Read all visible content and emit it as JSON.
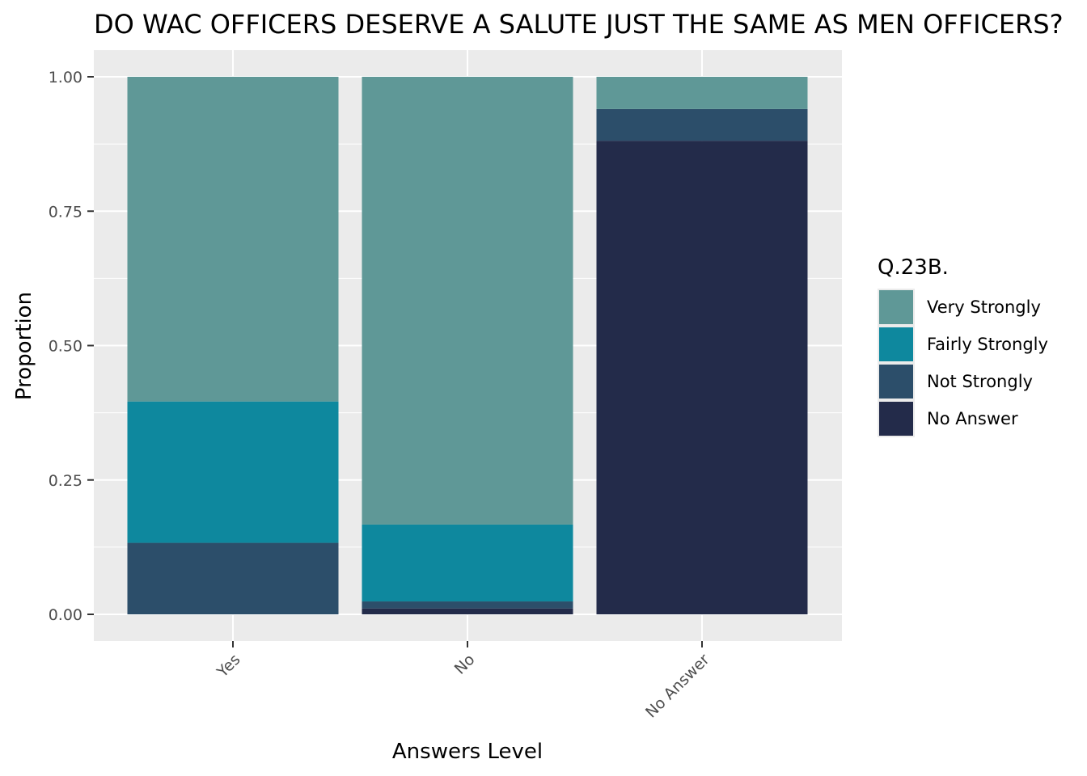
{
  "chart_data": {
    "type": "bar",
    "stacked": true,
    "title": "DO WAC OFFICERS DESERVE A SALUTE JUST THE SAME AS MEN OFFICERS?",
    "xlabel": "Answers Level",
    "ylabel": "Proportion",
    "ylim": [
      0,
      1
    ],
    "yticks": [
      "0.00",
      "0.25",
      "0.50",
      "0.75",
      "1.00"
    ],
    "categories": [
      "Yes",
      "No",
      "No Answer"
    ],
    "legend_title": "Q.23B.",
    "legend_position": "right",
    "grid": true,
    "series": [
      {
        "name": "No Answer",
        "color": "#232b4a",
        "values": [
          0.0,
          0.011,
          0.881
        ]
      },
      {
        "name": "Not Strongly",
        "color": "#2c4e6a",
        "values": [
          0.133,
          0.013,
          0.059
        ]
      },
      {
        "name": "Fairly Strongly",
        "color": "#0e889e",
        "values": [
          0.263,
          0.143,
          0.0
        ]
      },
      {
        "name": "Very Strongly",
        "color": "#5f9897",
        "values": [
          0.604,
          0.833,
          0.06
        ]
      }
    ],
    "legend_order": [
      "Very Strongly",
      "Fairly Strongly",
      "Not Strongly",
      "No Answer"
    ]
  },
  "colors": {
    "panel_background": "#ebebeb",
    "grid_line": "#ffffff",
    "tick_text": "#4d4d4d"
  }
}
